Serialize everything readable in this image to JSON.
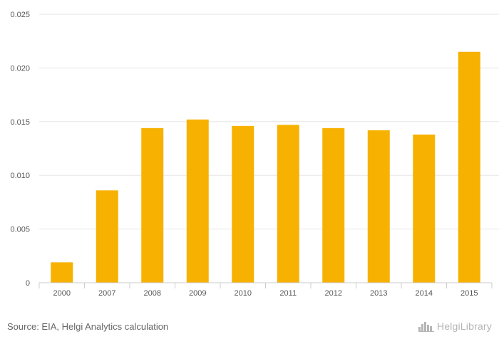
{
  "chart_data": {
    "type": "bar",
    "categories": [
      "2000",
      "2007",
      "2008",
      "2009",
      "2010",
      "2011",
      "2012",
      "2013",
      "2014",
      "2015"
    ],
    "values": [
      0.0019,
      0.0086,
      0.0144,
      0.0152,
      0.0146,
      0.0147,
      0.0144,
      0.0142,
      0.0138,
      0.0215
    ],
    "ylim": [
      0,
      0.025
    ],
    "yticks": [
      "0",
      "0.005",
      "0.010",
      "0.015",
      "0.020",
      "0.025"
    ],
    "ytick_values": [
      0,
      0.005,
      0.01,
      0.015,
      0.02,
      0.025
    ],
    "grid": true,
    "bar_color": "#F7B100",
    "title": "",
    "xlabel": "",
    "ylabel": ""
  },
  "footer": {
    "source": "Source: EIA, Helgi Analytics calculation",
    "brand": "HelgiLibrary"
  },
  "colors": {
    "grid": "#e6e6e6",
    "axis": "#cccccc",
    "brand": "#b5b5b5"
  },
  "icons": {
    "brand_logo": "city-skyline-icon"
  }
}
